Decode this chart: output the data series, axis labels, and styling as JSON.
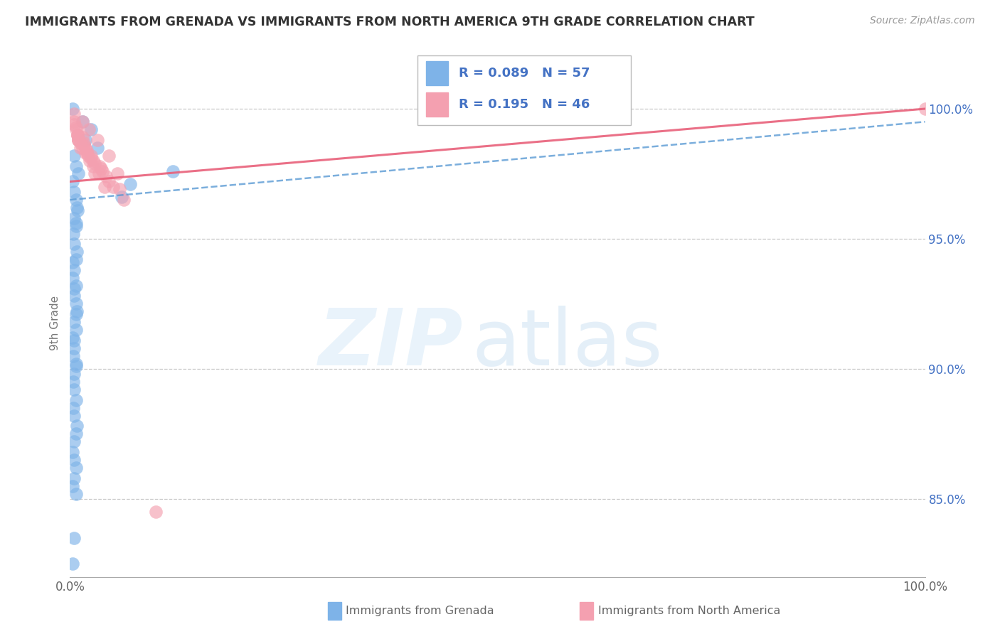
{
  "title": "IMMIGRANTS FROM GRENADA VS IMMIGRANTS FROM NORTH AMERICA 9TH GRADE CORRELATION CHART",
  "source": "Source: ZipAtlas.com",
  "ylabel": "9th Grade",
  "legend_blue_r": "R = 0.089",
  "legend_blue_n": "N = 57",
  "legend_pink_r": "R = 0.195",
  "legend_pink_n": "N = 46",
  "blue_color": "#7EB3E8",
  "pink_color": "#F4A0B0",
  "blue_line_color": "#5A9AD4",
  "pink_line_color": "#E8607A",
  "legend_text_color": "#4472C4",
  "xlim": [
    0,
    100
  ],
  "ylim": [
    82,
    101.5
  ],
  "yticks": [
    85,
    90,
    95,
    100
  ],
  "ytick_labels": [
    "85.0%",
    "90.0%",
    "95.0%",
    "100.0%"
  ],
  "blue_line_x0": 0,
  "blue_line_y0": 96.5,
  "blue_line_x1": 100,
  "blue_line_y1": 99.5,
  "pink_line_x0": 0,
  "pink_line_y0": 97.2,
  "pink_line_x1": 100,
  "pink_line_y1": 100.0,
  "blue_scatter_x": [
    0.3,
    1.5,
    2.5,
    1.8,
    3.2,
    0.5,
    0.7,
    1.0,
    0.3,
    0.5,
    0.7,
    0.8,
    0.5,
    0.7,
    0.4,
    0.5,
    0.8,
    0.7,
    0.5,
    0.3,
    0.7,
    0.5,
    0.7,
    0.8,
    0.5,
    0.7,
    0.3,
    0.5,
    0.4,
    0.7,
    0.5,
    0.4,
    0.5,
    0.7,
    0.4,
    0.5,
    0.8,
    0.7,
    0.5,
    0.3,
    0.5,
    0.7,
    0.5,
    0.3,
    0.7,
    7.0,
    0.3,
    0.5,
    0.7,
    0.9,
    12.0,
    0.5,
    0.7,
    6.0,
    0.5,
    0.7,
    0.3
  ],
  "blue_scatter_y": [
    100.0,
    99.5,
    99.2,
    98.8,
    98.5,
    98.2,
    97.8,
    97.5,
    97.2,
    96.8,
    96.5,
    96.2,
    95.8,
    95.5,
    95.2,
    94.8,
    94.5,
    94.2,
    93.8,
    93.5,
    93.2,
    92.8,
    92.5,
    92.2,
    91.8,
    91.5,
    91.2,
    90.8,
    90.5,
    90.2,
    89.8,
    89.5,
    89.2,
    88.8,
    88.5,
    88.2,
    87.8,
    87.5,
    87.2,
    86.8,
    86.5,
    86.2,
    85.8,
    85.5,
    85.2,
    97.1,
    94.1,
    93.1,
    92.1,
    96.1,
    97.6,
    91.1,
    90.1,
    96.6,
    83.5,
    95.6,
    82.5
  ],
  "pink_scatter_x": [
    0.5,
    1.5,
    2.2,
    3.2,
    4.5,
    5.5,
    0.9,
    1.8,
    2.7,
    3.5,
    0.7,
    1.6,
    2.5,
    1.0,
    2.0,
    1.2,
    2.9,
    4.0,
    0.5,
    0.9,
    1.5,
    2.3,
    3.4,
    5.0,
    6.3,
    0.7,
    1.0,
    1.8,
    2.7,
    1.2,
    2.1,
    3.6,
    4.5,
    0.9,
    1.6,
    2.5,
    3.8,
    0.5,
    1.5,
    2.9,
    4.2,
    5.8,
    1.0,
    2.0,
    10.0,
    100.0
  ],
  "pink_scatter_y": [
    99.8,
    99.5,
    99.2,
    98.8,
    98.2,
    97.5,
    99.0,
    98.5,
    98.0,
    97.8,
    99.3,
    98.7,
    98.2,
    98.8,
    98.3,
    98.5,
    97.5,
    97.0,
    99.5,
    99.0,
    98.5,
    98.0,
    97.5,
    97.0,
    96.5,
    99.2,
    98.8,
    98.3,
    97.8,
    98.7,
    98.2,
    97.7,
    97.2,
    99.0,
    98.6,
    98.1,
    97.6,
    99.4,
    98.9,
    97.9,
    97.4,
    96.9,
    98.8,
    98.4,
    84.5,
    100.0
  ]
}
